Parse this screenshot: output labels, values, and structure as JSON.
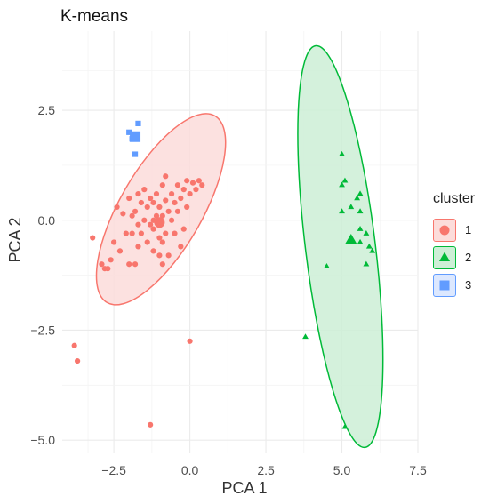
{
  "chart_data": {
    "type": "scatter",
    "title": "K-means",
    "xlabel": "PCA 1",
    "ylabel": "PCA 2",
    "xlim": [
      -4.2,
      7.5
    ],
    "ylim": [
      -5.3,
      4.3
    ],
    "x_ticks": [
      -2.5,
      0.0,
      2.5,
      5.0,
      7.5
    ],
    "x_tick_labels": [
      "−2.5",
      "0.0",
      "2.5",
      "5.0",
      "7.5"
    ],
    "y_ticks": [
      -5.0,
      -2.5,
      0.0,
      2.5
    ],
    "y_tick_labels": [
      "−5.0",
      "−2.5",
      "0.0",
      "2.5"
    ],
    "grid": true,
    "legend": {
      "title": "cluster",
      "position": "right"
    },
    "series": [
      {
        "name": "1",
        "color": "#F8766D",
        "fill": "#FCDCDA",
        "shape": "circle",
        "centroid": [
          -1.0,
          -0.05
        ],
        "ellipse": {
          "cx": -0.95,
          "cy": 0.25,
          "rx": 1.35,
          "ry": 2.45,
          "angle_deg": 30
        },
        "points": [
          [
            -3.2,
            -0.4
          ],
          [
            -2.8,
            -1.1
          ],
          [
            -2.7,
            -1.1
          ],
          [
            -2.6,
            -0.9
          ],
          [
            -2.5,
            -0.5
          ],
          [
            -2.4,
            0.3
          ],
          [
            -2.3,
            -0.7
          ],
          [
            -2.2,
            0.15
          ],
          [
            -2.1,
            -0.3
          ],
          [
            -2.0,
            0.5
          ],
          [
            -2.0,
            -1.0
          ],
          [
            -1.9,
            -0.3
          ],
          [
            -1.9,
            0.1
          ],
          [
            -1.8,
            0.2
          ],
          [
            -1.7,
            -0.1
          ],
          [
            -1.7,
            -0.6
          ],
          [
            -1.7,
            0.6
          ],
          [
            -1.6,
            -0.3
          ],
          [
            -1.6,
            0.4
          ],
          [
            -1.5,
            0.0
          ],
          [
            -1.5,
            0.7
          ],
          [
            -1.4,
            -0.5
          ],
          [
            -1.4,
            0.3
          ],
          [
            -1.3,
            -0.1
          ],
          [
            -1.3,
            0.5
          ],
          [
            -1.2,
            -0.7
          ],
          [
            -1.2,
            -0.2
          ],
          [
            -1.2,
            0.4
          ],
          [
            -1.1,
            0.1
          ],
          [
            -1.1,
            0.6
          ],
          [
            -1.0,
            -0.4
          ],
          [
            -1.0,
            -0.8
          ],
          [
            -1.0,
            0.3
          ],
          [
            -0.9,
            -0.5
          ],
          [
            -0.9,
            -1.0
          ],
          [
            -0.9,
            0.1
          ],
          [
            -0.9,
            0.8
          ],
          [
            -0.8,
            -0.3
          ],
          [
            -0.8,
            0.45
          ],
          [
            -0.7,
            0.2
          ],
          [
            -0.7,
            -0.8
          ],
          [
            -0.6,
            0.6
          ],
          [
            -0.6,
            0.0
          ],
          [
            -0.5,
            -0.3
          ],
          [
            -0.5,
            0.4
          ],
          [
            -0.4,
            0.8
          ],
          [
            -0.4,
            0.2
          ],
          [
            -0.3,
            0.5
          ],
          [
            -0.3,
            -0.6
          ],
          [
            -0.2,
            0.7
          ],
          [
            -0.2,
            -0.2
          ],
          [
            -0.1,
            0.9
          ],
          [
            -0.1,
            0.3
          ],
          [
            0.0,
            0.6
          ],
          [
            0.1,
            0.85
          ],
          [
            0.2,
            0.7
          ],
          [
            0.3,
            0.9
          ],
          [
            0.4,
            0.8
          ],
          [
            -1.2,
            0.0
          ],
          [
            -1.8,
            -1.0
          ],
          [
            -0.8,
            1.0
          ],
          [
            -2.9,
            -1.0
          ],
          [
            -3.8,
            -2.85
          ],
          [
            -3.7,
            -3.2
          ],
          [
            0.0,
            -2.75
          ],
          [
            -1.3,
            -4.65
          ]
        ]
      },
      {
        "name": "2",
        "color": "#00BA38",
        "fill": "#CDEFD6",
        "shape": "triangle",
        "centroid": [
          5.3,
          -0.45
        ],
        "ellipse": {
          "cx": 4.95,
          "cy": -0.6,
          "rx": 1.15,
          "ry": 4.6,
          "angle_deg": -7
        },
        "points": [
          [
            5.0,
            1.5
          ],
          [
            5.0,
            0.8
          ],
          [
            5.1,
            0.9
          ],
          [
            5.0,
            0.2
          ],
          [
            5.3,
            0.3
          ],
          [
            5.5,
            0.5
          ],
          [
            5.6,
            0.6
          ],
          [
            5.6,
            0.2
          ],
          [
            5.6,
            -0.2
          ],
          [
            5.8,
            -0.3
          ],
          [
            5.6,
            -0.5
          ],
          [
            5.9,
            -0.6
          ],
          [
            6.0,
            -0.7
          ],
          [
            5.8,
            -1.0
          ],
          [
            4.5,
            -1.05
          ],
          [
            3.8,
            -2.65
          ],
          [
            5.1,
            -4.7
          ]
        ]
      },
      {
        "name": "3",
        "color": "#619CFF",
        "fill": "#DCE8FF",
        "shape": "square",
        "centroid": [
          -1.8,
          1.9
        ],
        "points": [
          [
            -2.0,
            2.0
          ],
          [
            -1.7,
            2.2
          ],
          [
            -1.9,
            1.85
          ],
          [
            -1.8,
            1.5
          ]
        ]
      }
    ]
  }
}
